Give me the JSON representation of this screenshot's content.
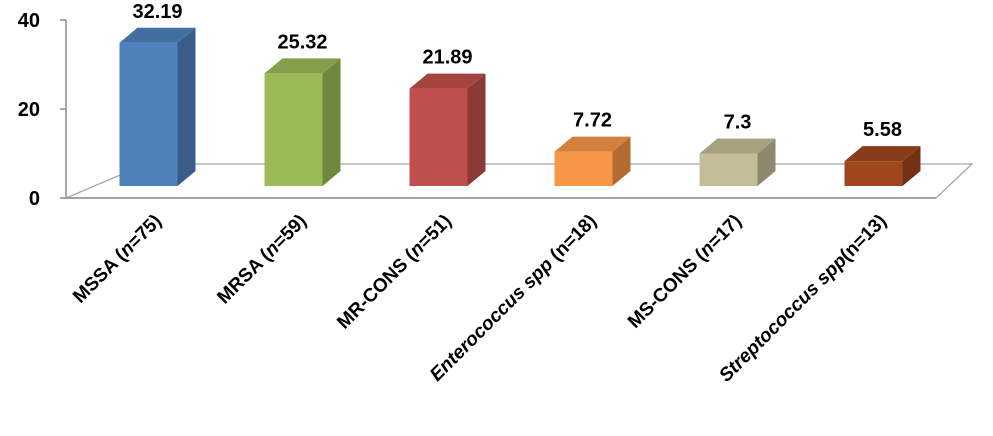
{
  "chart_data": {
    "type": "bar",
    "title": "",
    "xlabel": "",
    "ylabel": "",
    "ylim": [
      0,
      40
    ],
    "yticks": [
      0,
      20,
      40
    ],
    "grid": false,
    "style": "3d-column",
    "categories": [
      {
        "label": "MSSA (n=75)",
        "prefix": "MSSA (",
        "italic": "n",
        "suffix": "=75)",
        "value": 32.19,
        "value_label": "32.19",
        "color": "#4F81BD"
      },
      {
        "label": "MRSA (n=59)",
        "prefix": "MRSA (",
        "italic": "n",
        "suffix": "=59)",
        "value": 25.32,
        "value_label": "25.32",
        "color": "#9BBB59"
      },
      {
        "label": "MR-CONS (n=51)",
        "prefix": "MR-CONS (",
        "italic": "n",
        "suffix": "=51)",
        "value": 21.89,
        "value_label": "21.89",
        "color": "#C0504D"
      },
      {
        "label": "Enterococcus spp (n=18)",
        "prefix": "",
        "italic": "Enterococcus spp",
        "suffix": " (n=18)",
        "value": 7.72,
        "value_label": "7.72",
        "color": "#F79646"
      },
      {
        "label": "MS-CONS (n=17)",
        "prefix": "MS-CONS (",
        "italic": "n",
        "suffix": "=17)",
        "value": 7.3,
        "value_label": "7.3",
        "color": "#C4BD97"
      },
      {
        "label": "Streptococcus spp(n=13)",
        "prefix": "",
        "italic": "Streptococcus spp",
        "suffix": "(n=13)",
        "value": 5.58,
        "value_label": "5.58",
        "color": "#A0461E"
      }
    ]
  }
}
